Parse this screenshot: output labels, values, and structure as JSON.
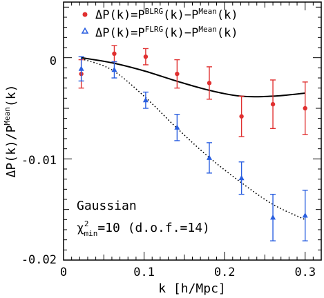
{
  "chart_data": {
    "type": "scatter",
    "xlabel": "k [h/Mpc]",
    "ylabel_parts": {
      "main": "ΔP(k)/P",
      "sup": "Mean",
      "tail": "(k)"
    },
    "xlim": [
      0,
      0.32
    ],
    "ylim": [
      -0.02,
      0.0055
    ],
    "x_ticks": [
      "0",
      "0.1",
      "0.2",
      "0.3"
    ],
    "y_ticks": [
      "0",
      "-0.01",
      "-0.02"
    ],
    "x_tick_values": [
      0,
      0.1,
      0.2,
      0.3
    ],
    "y_tick_values": [
      0,
      -0.01,
      -0.02
    ],
    "legend": [
      {
        "marker": "circle",
        "color": "#e03030",
        "parts": {
          "a": "ΔP(k)=P",
          "b": "BLRG",
          "c": "(k)−P",
          "d": "Mean",
          "e": "(k)"
        }
      },
      {
        "marker": "triangle",
        "color": "#2a5fe0",
        "parts": {
          "a": "ΔP(k)=P",
          "b": "FLRG",
          "c": "(k)−P",
          "d": "Mean",
          "e": "(k)"
        }
      }
    ],
    "series": [
      {
        "marker": "circle",
        "color": "#e03030",
        "x": [
          0.022,
          0.063,
          0.102,
          0.141,
          0.181,
          0.221,
          0.26,
          0.3
        ],
        "y": [
          -0.0016,
          0.0004,
          0.0001,
          -0.0016,
          -0.0025,
          -0.0058,
          -0.0046,
          -0.005
        ],
        "err": [
          0.0014,
          0.0008,
          0.0008,
          0.0014,
          0.0016,
          0.002,
          0.0024,
          0.0026
        ]
      },
      {
        "marker": "triangle",
        "color": "#2a5fe0",
        "x": [
          0.022,
          0.063,
          0.102,
          0.141,
          0.181,
          0.221,
          0.26,
          0.3
        ],
        "y": [
          -0.0011,
          -0.0012,
          -0.0042,
          -0.0069,
          -0.0099,
          -0.0119,
          -0.0158,
          -0.0156
        ],
        "err": [
          0.0012,
          0.0008,
          0.0008,
          0.0013,
          0.0015,
          0.0016,
          0.0023,
          0.0025
        ]
      },
      {
        "style": "solid-line",
        "color": "#000000",
        "x": [
          0.022,
          0.06,
          0.1,
          0.14,
          0.18,
          0.22,
          0.26,
          0.3
        ],
        "y": [
          0.0,
          -0.0005,
          -0.0013,
          -0.0023,
          -0.0032,
          -0.0038,
          -0.0038,
          -0.0035
        ]
      },
      {
        "style": "dotted-line",
        "color": "#000000",
        "x": [
          0.022,
          0.06,
          0.1,
          0.14,
          0.18,
          0.22,
          0.26,
          0.3
        ],
        "y": [
          -0.0001,
          -0.0012,
          -0.0038,
          -0.0069,
          -0.0098,
          -0.0123,
          -0.0145,
          -0.016
        ]
      }
    ],
    "annotations": {
      "label": "Gaussian",
      "chi_symbol": "χ",
      "chi_sup": "2",
      "chi_sub": "min",
      "chi_rest": "=10 (d.o.f.=14)"
    }
  }
}
